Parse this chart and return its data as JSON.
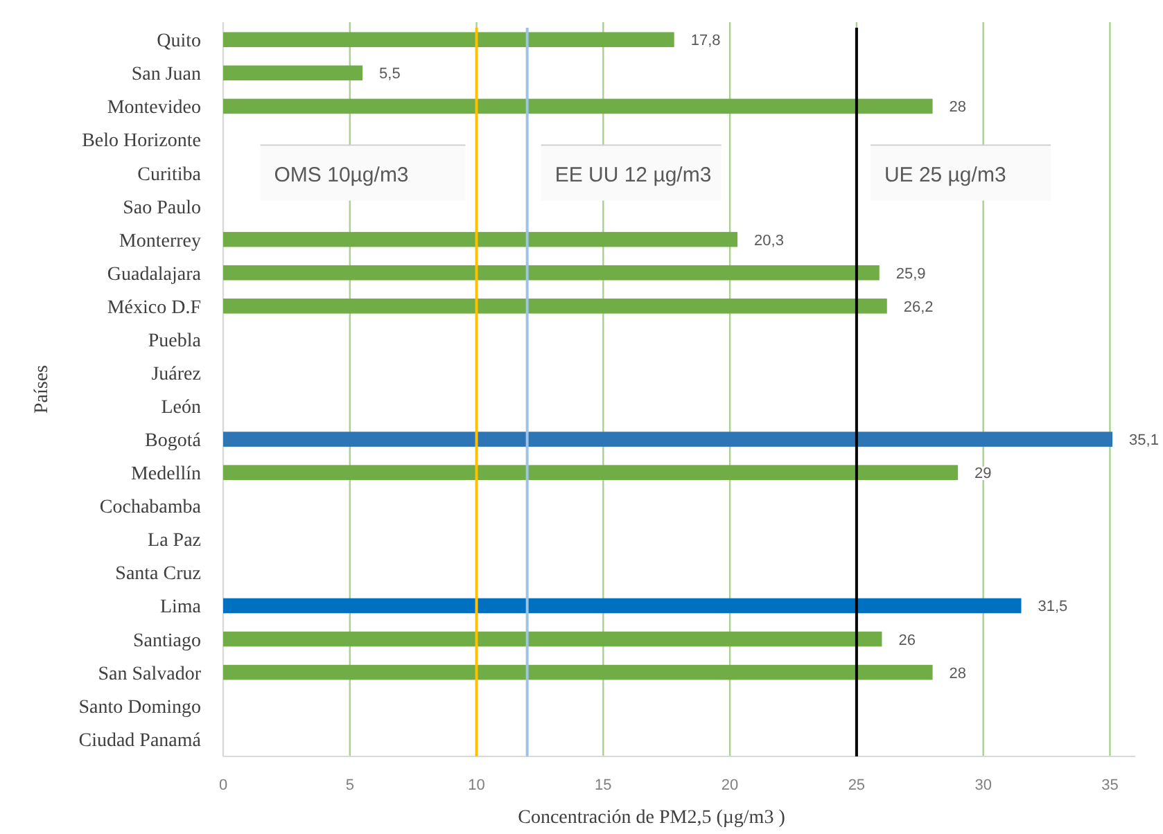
{
  "chart_data": {
    "type": "bar",
    "orientation": "horizontal",
    "xlabel": "Concentración de PM2,5 (µg/m3 )",
    "ylabel": "Países",
    "categories": [
      "Quito",
      "San Juan",
      "Montevideo",
      "Belo Horizonte",
      "Curitiba",
      "Sao Paulo",
      "Monterrey",
      "Guadalajara",
      "México D.F",
      "Puebla",
      "Juárez",
      "León",
      "Bogotá",
      "Medellín",
      "Cochabamba",
      "La Paz",
      "Santa Cruz",
      "Lima",
      "Santiago",
      "San Salvador",
      "Santo Domingo",
      "Ciudad Panamá"
    ],
    "values": [
      17.8,
      5.5,
      28,
      null,
      null,
      null,
      20.3,
      25.9,
      26.2,
      null,
      null,
      null,
      35.1,
      29,
      null,
      null,
      null,
      31.5,
      26,
      28,
      null,
      null
    ],
    "value_labels": [
      "17,8",
      "5,5",
      "28",
      null,
      null,
      null,
      "20,3",
      "25,9",
      "26,2",
      null,
      null,
      null,
      "35,1",
      "29",
      null,
      null,
      null,
      "31,5",
      "26",
      "28",
      null,
      null
    ],
    "colors": [
      "#70ad47",
      "#70ad47",
      "#70ad47",
      null,
      null,
      null,
      "#70ad47",
      "#70ad47",
      "#70ad47",
      null,
      null,
      null,
      "#2e75b6",
      "#70ad47",
      null,
      null,
      null,
      "#0070c0",
      "#70ad47",
      "#70ad47",
      null,
      null
    ],
    "xlim": [
      0,
      36
    ],
    "xticks": [
      0,
      5,
      10,
      15,
      20,
      25,
      30,
      35
    ],
    "grid": "x",
    "ref_lines": [
      {
        "axis": "x",
        "value": 10,
        "label": "OMS 10µg/m3",
        "color": "#ffc000"
      },
      {
        "axis": "x",
        "value": 12,
        "label": "EE UU 12 µg/m3",
        "color": "#9dc3e6"
      },
      {
        "axis": "x",
        "value": 25,
        "label": "UE 25  µg/m3",
        "color": "#000000"
      }
    ]
  }
}
